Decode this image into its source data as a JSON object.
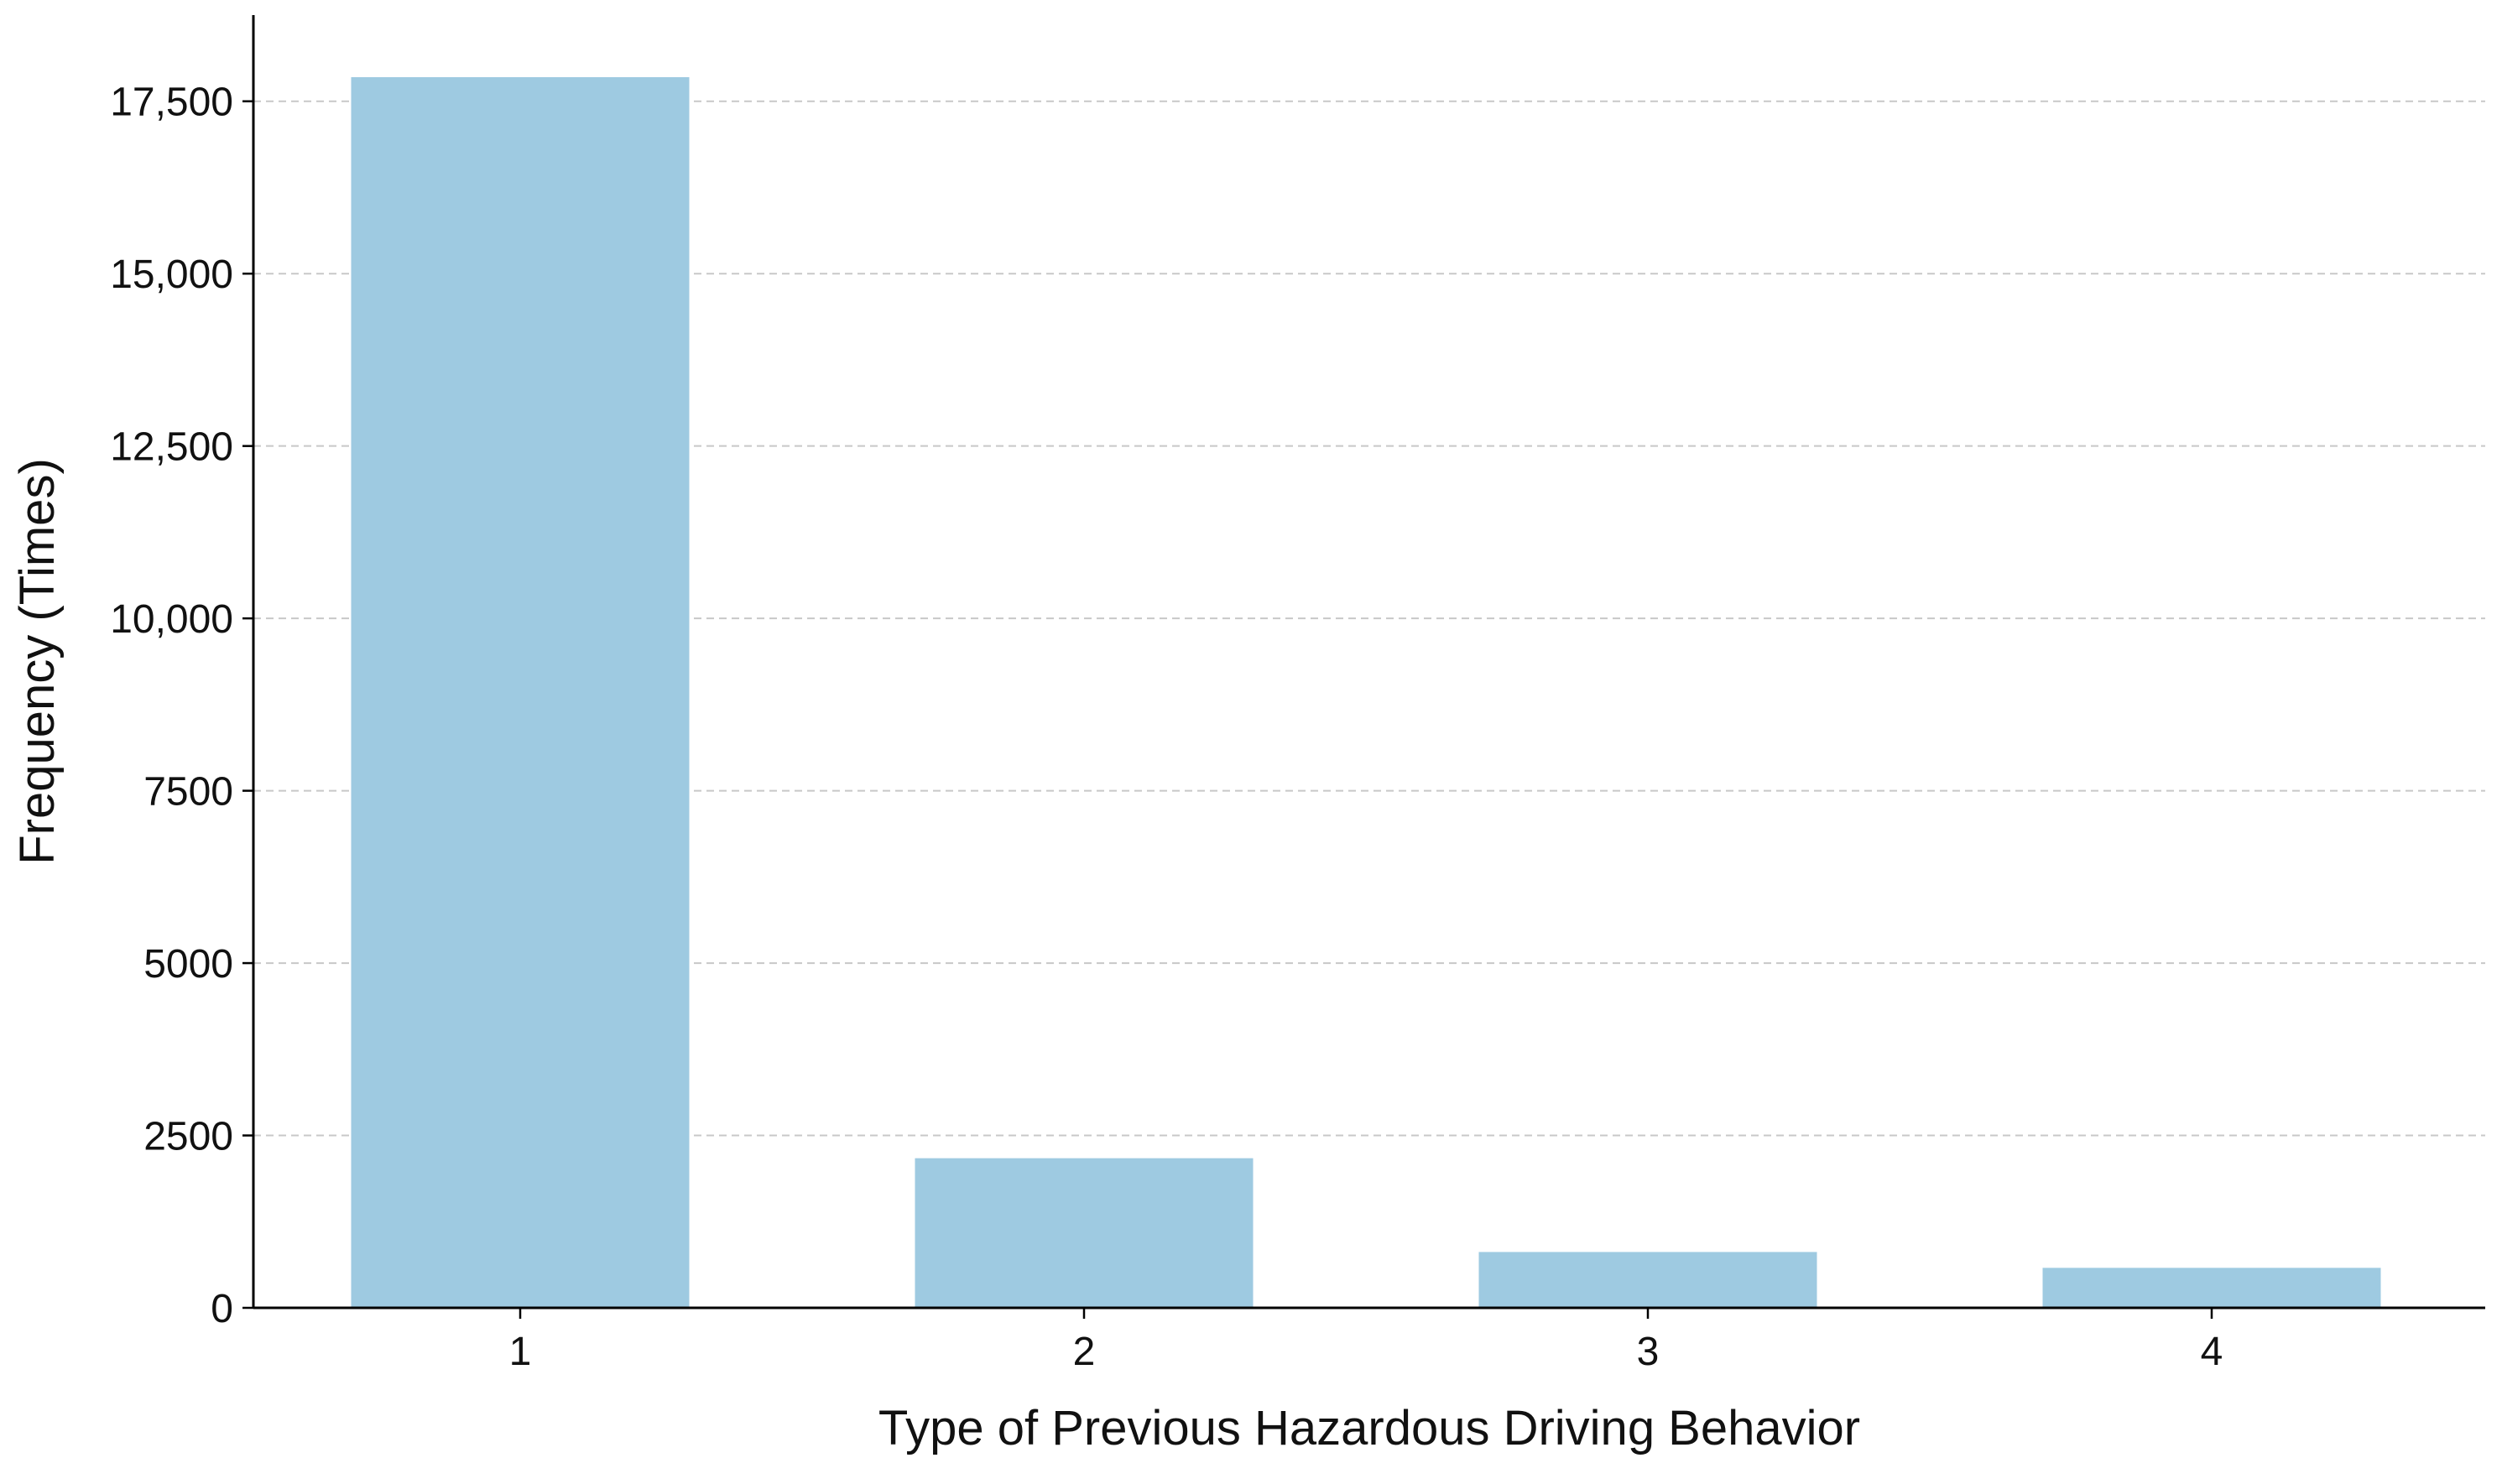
{
  "chart_data": {
    "type": "bar",
    "categories": [
      "1",
      "2",
      "3",
      "4"
    ],
    "values": [
      17850,
      2170,
      810,
      580
    ],
    "title": "",
    "xlabel": "Type of Previous Hazardous Driving Behavior",
    "ylabel": "Frequency (Times)",
    "ylim": [
      0,
      18750
    ],
    "yticks": [
      0,
      2500,
      5000,
      7500,
      10000,
      12500,
      15000,
      17500
    ],
    "ytick_labels": [
      "0",
      "2500",
      "5000",
      "7500",
      "10,000",
      "12,500",
      "15,000",
      "17,500"
    ],
    "grid": "y-dashed",
    "legend": "none",
    "bar_color": "#9ecae1",
    "grid_color": "#c8c8c8",
    "axis_color": "#000000"
  }
}
